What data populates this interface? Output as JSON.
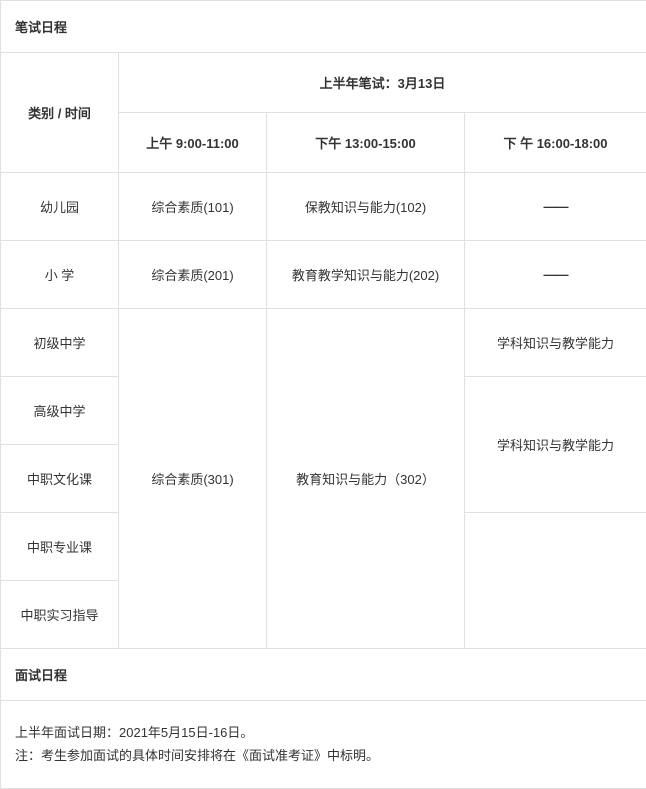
{
  "written": {
    "section_title": "笔试日程",
    "category_time_label": "类别  /   时间",
    "exam_date_header": "上半年笔试：3月13日",
    "time_slots": {
      "am": "上午  9:00-11:00",
      "pm1": "下午   13:00-15:00",
      "pm2": "下 午  16:00-18:00"
    },
    "rows": {
      "kindergarten": {
        "cat": "幼儿园",
        "am": "综合素质(101)",
        "pm1": "保教知识与能力(102)",
        "pm2": "——"
      },
      "primary": {
        "cat": "小     学",
        "am": "综合素质(201)",
        "pm1": "教育教学知识与能力(202)",
        "pm2": "——"
      },
      "junior": {
        "cat": "初级中学",
        "pm2": "学科知识与教学能力"
      },
      "senior": {
        "cat": "高级中学"
      },
      "voc_culture": {
        "cat": "中职文化课"
      },
      "voc_pro": {
        "cat": "中职专业课"
      },
      "voc_intern": {
        "cat": "中职实习指导"
      },
      "merged301": {
        "am": "综合素质(301)",
        "pm1": "教育知识与能力（302）",
        "pm2": "学科知识与教学能力"
      }
    }
  },
  "interview": {
    "section_title": "面试日程",
    "line1": "上半年面试日期：2021年5月15日-16日。",
    "line2": "注：考生参加面试的具体时间安排将在《面试准考证》中标明。"
  }
}
